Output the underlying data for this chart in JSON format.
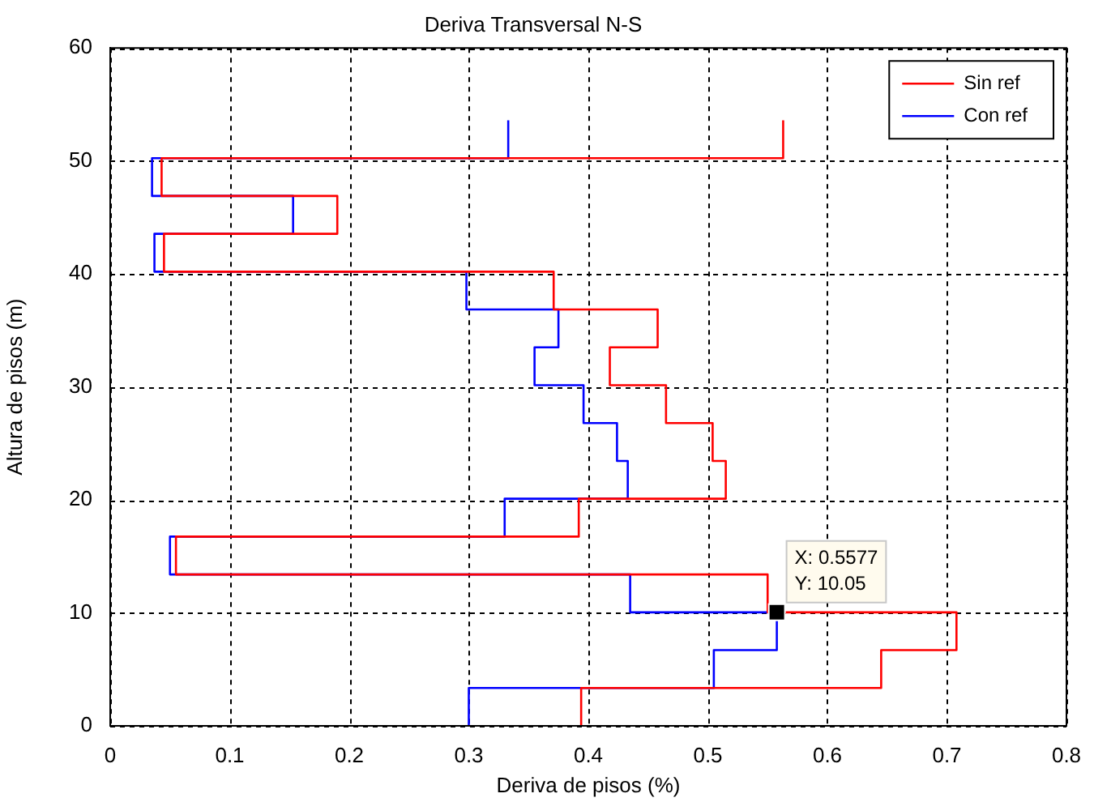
{
  "chart_data": {
    "type": "line",
    "title": "Deriva Transversal N-S",
    "xlabel": "Deriva de pisos (%)",
    "ylabel": "Altura de pisos (m)",
    "xlim": [
      0,
      0.8
    ],
    "xticks": [
      0,
      0.1,
      0.2,
      0.3,
      0.4,
      0.5,
      0.6,
      0.7,
      0.8
    ],
    "ylim": [
      0,
      60
    ],
    "yticks": [
      0,
      10,
      20,
      30,
      40,
      50,
      60
    ],
    "grid": true,
    "legend": "top right",
    "marker": "none",
    "line_style": "solid",
    "series": [
      {
        "name": "Sin ref",
        "color": "#ff0000",
        "x": [
          0.394,
          0.394,
          0.645,
          0.645,
          0.708,
          0.708,
          0.55,
          0.55,
          0.055,
          0.055,
          0.392,
          0.392,
          0.515,
          0.515,
          0.504,
          0.504,
          0.465,
          0.465,
          0.418,
          0.418,
          0.458,
          0.458,
          0.371,
          0.371,
          0.045,
          0.045,
          0.19,
          0.19,
          0.043,
          0.043,
          0.563,
          0.563
        ],
        "values": [
          0,
          3.35,
          3.35,
          6.7,
          6.7,
          10.05,
          10.05,
          13.4,
          13.4,
          16.75,
          16.75,
          20.1,
          20.1,
          23.45,
          23.45,
          26.8,
          26.8,
          30.15,
          30.15,
          33.5,
          33.5,
          36.85,
          36.85,
          40.2,
          40.2,
          43.55,
          43.55,
          46.9,
          46.9,
          50.25,
          50.25,
          53.6
        ]
      },
      {
        "name": "Con ref",
        "color": "#0000ff",
        "x": [
          0.3,
          0.3,
          0.505,
          0.505,
          0.5577,
          0.5577,
          0.435,
          0.435,
          0.05,
          0.05,
          0.33,
          0.33,
          0.433,
          0.433,
          0.424,
          0.424,
          0.396,
          0.396,
          0.355,
          0.355,
          0.375,
          0.375,
          0.298,
          0.298,
          0.037,
          0.037,
          0.153,
          0.153,
          0.035,
          0.035,
          0.333,
          0.333
        ],
        "values": [
          0,
          3.35,
          3.35,
          6.7,
          6.7,
          10.05,
          10.05,
          13.4,
          13.4,
          16.75,
          16.75,
          20.1,
          20.1,
          23.45,
          23.45,
          26.8,
          26.8,
          30.15,
          30.15,
          33.5,
          33.5,
          36.85,
          36.85,
          40.2,
          40.2,
          43.55,
          43.55,
          46.9,
          46.9,
          50.25,
          50.25,
          53.6
        ]
      }
    ],
    "annotations": [
      {
        "text": "X: 0.5577\nY: 10.05",
        "x": 0.5577,
        "y": 10.05
      }
    ]
  }
}
